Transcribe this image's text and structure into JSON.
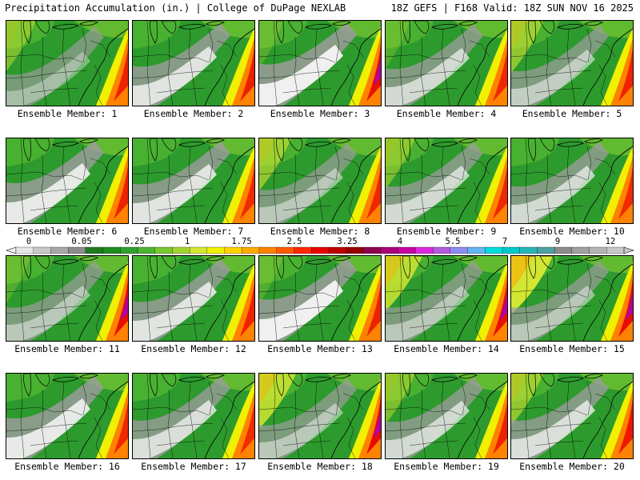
{
  "header": {
    "left": "Precipitation Accumulation (in.) | College of DuPage NEXLAB",
    "right": "18Z GEFS | F168 Valid: 18Z SUN NOV 16 2025"
  },
  "colorbar": {
    "labels": [
      "0",
      "0.05",
      "0.25",
      "1",
      "1.75",
      "2.5",
      "3.25",
      "4",
      "5.5",
      "7",
      "9",
      "12"
    ],
    "colors": [
      "#e6e6e6",
      "#c8c8c8",
      "#a8a8a8",
      "#8c8c8c",
      "#1e7a1e",
      "#1e8c1e",
      "#2ea02e",
      "#4cb432",
      "#78c832",
      "#a0d232",
      "#d2e632",
      "#f0f000",
      "#ffd200",
      "#ffaa00",
      "#ff8200",
      "#ff5a00",
      "#ff2800",
      "#e60000",
      "#be0000",
      "#960000",
      "#8c0050",
      "#aa0078",
      "#c800a0",
      "#dc28dc",
      "#b45adc",
      "#8c8cf0",
      "#64b4f0",
      "#00dcdc",
      "#00c8c8",
      "#28b4b4",
      "#50a0a0",
      "#8c8c8c",
      "#a0a0a0",
      "#b4b4b4",
      "#c8c8c8"
    ]
  },
  "members": [
    {
      "label": "Ensemble Member: 1",
      "wet": 0.2,
      "dry": 0.3,
      "peak": 0.55
    },
    {
      "label": "Ensemble Member: 2",
      "wet": 0.0,
      "dry": 0.65,
      "peak": 0.6
    },
    {
      "label": "Ensemble Member: 3",
      "wet": 0.1,
      "dry": 0.75,
      "peak": 0.8
    },
    {
      "label": "Ensemble Member: 4",
      "wet": 0.1,
      "dry": 0.55,
      "peak": 0.5
    },
    {
      "label": "Ensemble Member: 5",
      "wet": 0.25,
      "dry": 0.45,
      "peak": 0.55
    },
    {
      "label": "Ensemble Member: 6",
      "wet": 0.0,
      "dry": 0.7,
      "peak": 0.55
    },
    {
      "label": "Ensemble Member: 7",
      "wet": 0.0,
      "dry": 0.65,
      "peak": 0.45
    },
    {
      "label": "Ensemble Member: 8",
      "wet": 0.25,
      "dry": 0.4,
      "peak": 0.5
    },
    {
      "label": "Ensemble Member: 9",
      "wet": 0.2,
      "dry": 0.55,
      "peak": 0.5
    },
    {
      "label": "Ensemble Member: 10",
      "wet": 0.0,
      "dry": 0.55,
      "peak": 0.45
    },
    {
      "label": "Ensemble Member: 11",
      "wet": 0.1,
      "dry": 0.4,
      "peak": 0.8
    },
    {
      "label": "Ensemble Member: 12",
      "wet": 0.0,
      "dry": 0.65,
      "peak": 0.55
    },
    {
      "label": "Ensemble Member: 13",
      "wet": 0.1,
      "dry": 0.75,
      "peak": 0.55
    },
    {
      "label": "Ensemble Member: 14",
      "wet": 0.35,
      "dry": 0.4,
      "peak": 0.8
    },
    {
      "label": "Ensemble Member: 15",
      "wet": 0.45,
      "dry": 0.4,
      "peak": 0.85
    },
    {
      "label": "Ensemble Member: 16",
      "wet": 0.0,
      "dry": 0.7,
      "peak": 0.5
    },
    {
      "label": "Ensemble Member: 17",
      "wet": 0.0,
      "dry": 0.6,
      "peak": 0.45
    },
    {
      "label": "Ensemble Member: 18",
      "wet": 0.35,
      "dry": 0.4,
      "peak": 0.85
    },
    {
      "label": "Ensemble Member: 19",
      "wet": 0.2,
      "dry": 0.55,
      "peak": 0.55
    },
    {
      "label": "Ensemble Member: 20",
      "wet": 0.25,
      "dry": 0.6,
      "peak": 0.7
    }
  ]
}
